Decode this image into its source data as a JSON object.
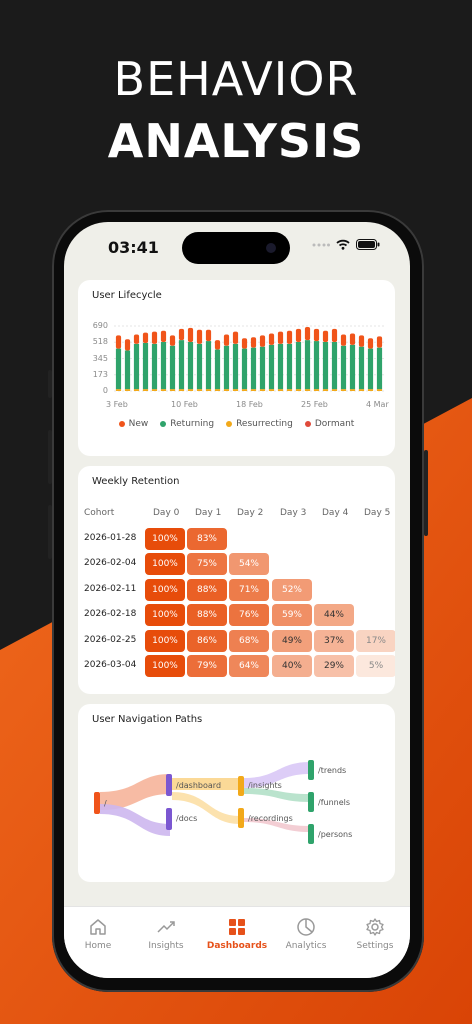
{
  "hero": {
    "line1": "BEHAVIOR",
    "line2": "ANALYSIS"
  },
  "status_bar": {
    "time": "03:41"
  },
  "lifecycle": {
    "title": "User Lifecycle",
    "y_ticks": [
      "690",
      "518",
      "345",
      "173",
      "0"
    ],
    "x_ticks": [
      "3 Feb",
      "10 Feb",
      "18 Feb",
      "25 Feb",
      "4 Mar"
    ],
    "legend": [
      "New",
      "Returning",
      "Resurrecting",
      "Dormant"
    ],
    "colors": {
      "new": "#f0541a",
      "returning": "#2fa36b",
      "resurrecting": "#f2a91a",
      "dormant": "#e04a3a"
    }
  },
  "chart_data": {
    "type": "bar",
    "title": "User Lifecycle",
    "y_range": [
      0,
      690
    ],
    "x_tick_labels": [
      "3 Feb",
      "10 Feb",
      "18 Feb",
      "25 Feb",
      "4 Mar"
    ],
    "series": [
      {
        "name": "Returning",
        "values": [
          430,
          410,
          480,
          490,
          480,
          500,
          460,
          520,
          500,
          480,
          510,
          420,
          460,
          480,
          430,
          440,
          450,
          470,
          480,
          480,
          500,
          520,
          510,
          500,
          500,
          460,
          470,
          450,
          430,
          440
        ]
      },
      {
        "name": "New",
        "values": [
          140,
          120,
          100,
          110,
          130,
          120,
          110,
          120,
          150,
          150,
          120,
          100,
          120,
          130,
          110,
          110,
          120,
          120,
          130,
          140,
          140,
          140,
          130,
          120,
          140,
          120,
          120,
          120,
          110,
          120
        ]
      },
      {
        "name": "Resurrecting",
        "values": [
          20,
          20,
          20,
          20,
          20,
          20,
          20,
          20,
          20,
          20,
          20,
          20,
          20,
          20,
          20,
          20,
          20,
          20,
          20,
          20,
          20,
          20,
          20,
          20,
          20,
          20,
          20,
          20,
          20,
          20
        ]
      }
    ]
  },
  "retention": {
    "title": "Weekly Retention",
    "headers": [
      "Cohort",
      "Day 0",
      "Day 1",
      "Day 2",
      "Day 3",
      "Day 4",
      "Day 5"
    ],
    "rows": [
      {
        "cohort": "2026-01-28",
        "values": [
          "100%",
          "83%"
        ]
      },
      {
        "cohort": "2026-02-04",
        "values": [
          "100%",
          "75%",
          "54%"
        ]
      },
      {
        "cohort": "2026-02-11",
        "values": [
          "100%",
          "88%",
          "71%",
          "52%"
        ]
      },
      {
        "cohort": "2026-02-18",
        "values": [
          "100%",
          "88%",
          "76%",
          "59%",
          "44%"
        ]
      },
      {
        "cohort": "2026-02-25",
        "values": [
          "100%",
          "86%",
          "68%",
          "49%",
          "37%",
          "17%"
        ]
      },
      {
        "cohort": "2026-03-04",
        "values": [
          "100%",
          "79%",
          "64%",
          "40%",
          "29%",
          "5%"
        ]
      }
    ]
  },
  "paths": {
    "title": "User Navigation Paths",
    "nodes": [
      "/",
      "/dashboard",
      "/docs",
      "/insights",
      "/recordings",
      "/trends",
      "/funnels",
      "/persons"
    ]
  },
  "nav": {
    "items": [
      {
        "label": "Home",
        "active": false
      },
      {
        "label": "Insights",
        "active": false
      },
      {
        "label": "Dashboards",
        "active": true
      },
      {
        "label": "Analytics",
        "active": false
      },
      {
        "label": "Settings",
        "active": false
      }
    ],
    "accent": "#e6511a"
  }
}
